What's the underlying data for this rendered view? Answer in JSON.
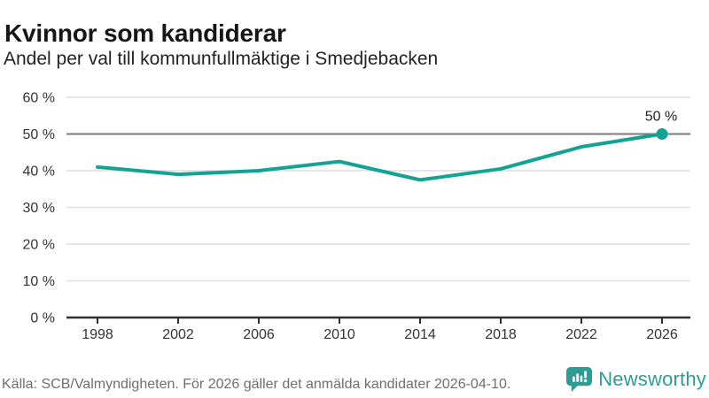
{
  "chart_data": {
    "type": "line",
    "title": "Kvinnor som kandiderar",
    "subtitle": "Andel per val till kommunfullmäktige i Smedjebacken",
    "x": [
      1998,
      2002,
      2006,
      2010,
      2014,
      2018,
      2022,
      2026
    ],
    "xtick_labels": [
      "1998",
      "2002",
      "2006",
      "2010",
      "2014",
      "2018",
      "2022",
      "2026"
    ],
    "values": [
      41,
      39,
      40,
      42.5,
      37.5,
      40.5,
      46.5,
      50
    ],
    "ylim": [
      0,
      60
    ],
    "yticks": [
      0,
      10,
      20,
      30,
      40,
      50,
      60
    ],
    "ytick_labels": [
      "0 %",
      "10 %",
      "20 %",
      "30 %",
      "40 %",
      "50 %",
      "60 %"
    ],
    "grid": "horizontal",
    "highlight_gridline_value": 50,
    "end_point_label": "50 %",
    "legend": "none",
    "colors": {
      "line": "#13A394",
      "grid": "#DEDEDE",
      "highlight_grid": "#7A7A7A",
      "axis": "#2E2E2E",
      "tick_text": "#333333",
      "annotation_text": "#1E1E1E"
    }
  },
  "footer": {
    "source": "Källa: SCB/Valmyndigheten. För 2026 gäller det anmälda kandidater 2026-04-10.",
    "brand": "Newsworthy",
    "brand_color": "#2E9C94"
  }
}
